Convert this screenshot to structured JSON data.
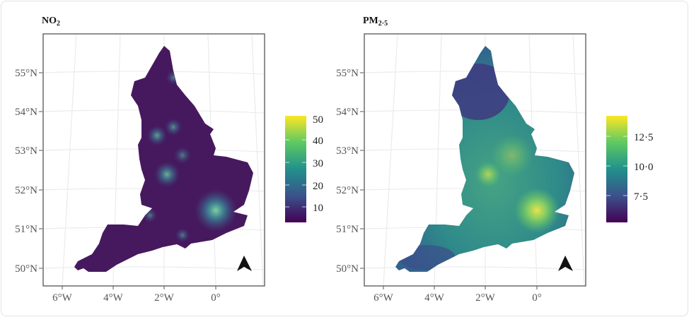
{
  "panels": [
    {
      "title": "NO",
      "title_sub": "2",
      "lat_labels": [
        "55°N",
        "54°N",
        "53°N",
        "52°N",
        "51°N",
        "50°N"
      ],
      "lon_labels": [
        "6°W",
        "4°W",
        "2°W",
        "0°"
      ],
      "legend": {
        "ticks": [
          "50",
          "40",
          "30",
          "20",
          "10"
        ],
        "tick_values": [
          50,
          40,
          30,
          20,
          10
        ],
        "range": [
          3,
          51
        ],
        "colormap": "viridis"
      },
      "north_arrow": "north-arrow-icon"
    },
    {
      "title": "PM",
      "title_sub": "2·5",
      "lat_labels": [
        "55°N",
        "54°N",
        "53°N",
        "52°N",
        "51°N",
        "50°N"
      ],
      "lon_labels": [
        "6°W",
        "4°W",
        "2°W",
        "0°"
      ],
      "legend": {
        "ticks": [
          "12·5",
          "10·0",
          "7·5"
        ],
        "tick_values": [
          12.5,
          10.0,
          7.5
        ],
        "range": [
          5.5,
          14
        ],
        "colormap": "viridis"
      },
      "north_arrow": "north-arrow-icon"
    }
  ],
  "colors": {
    "viridis": [
      "#440154",
      "#3b528b",
      "#21918c",
      "#5ec962",
      "#fde725"
    ],
    "low": "#46195e",
    "grid": "#ebebeb"
  }
}
